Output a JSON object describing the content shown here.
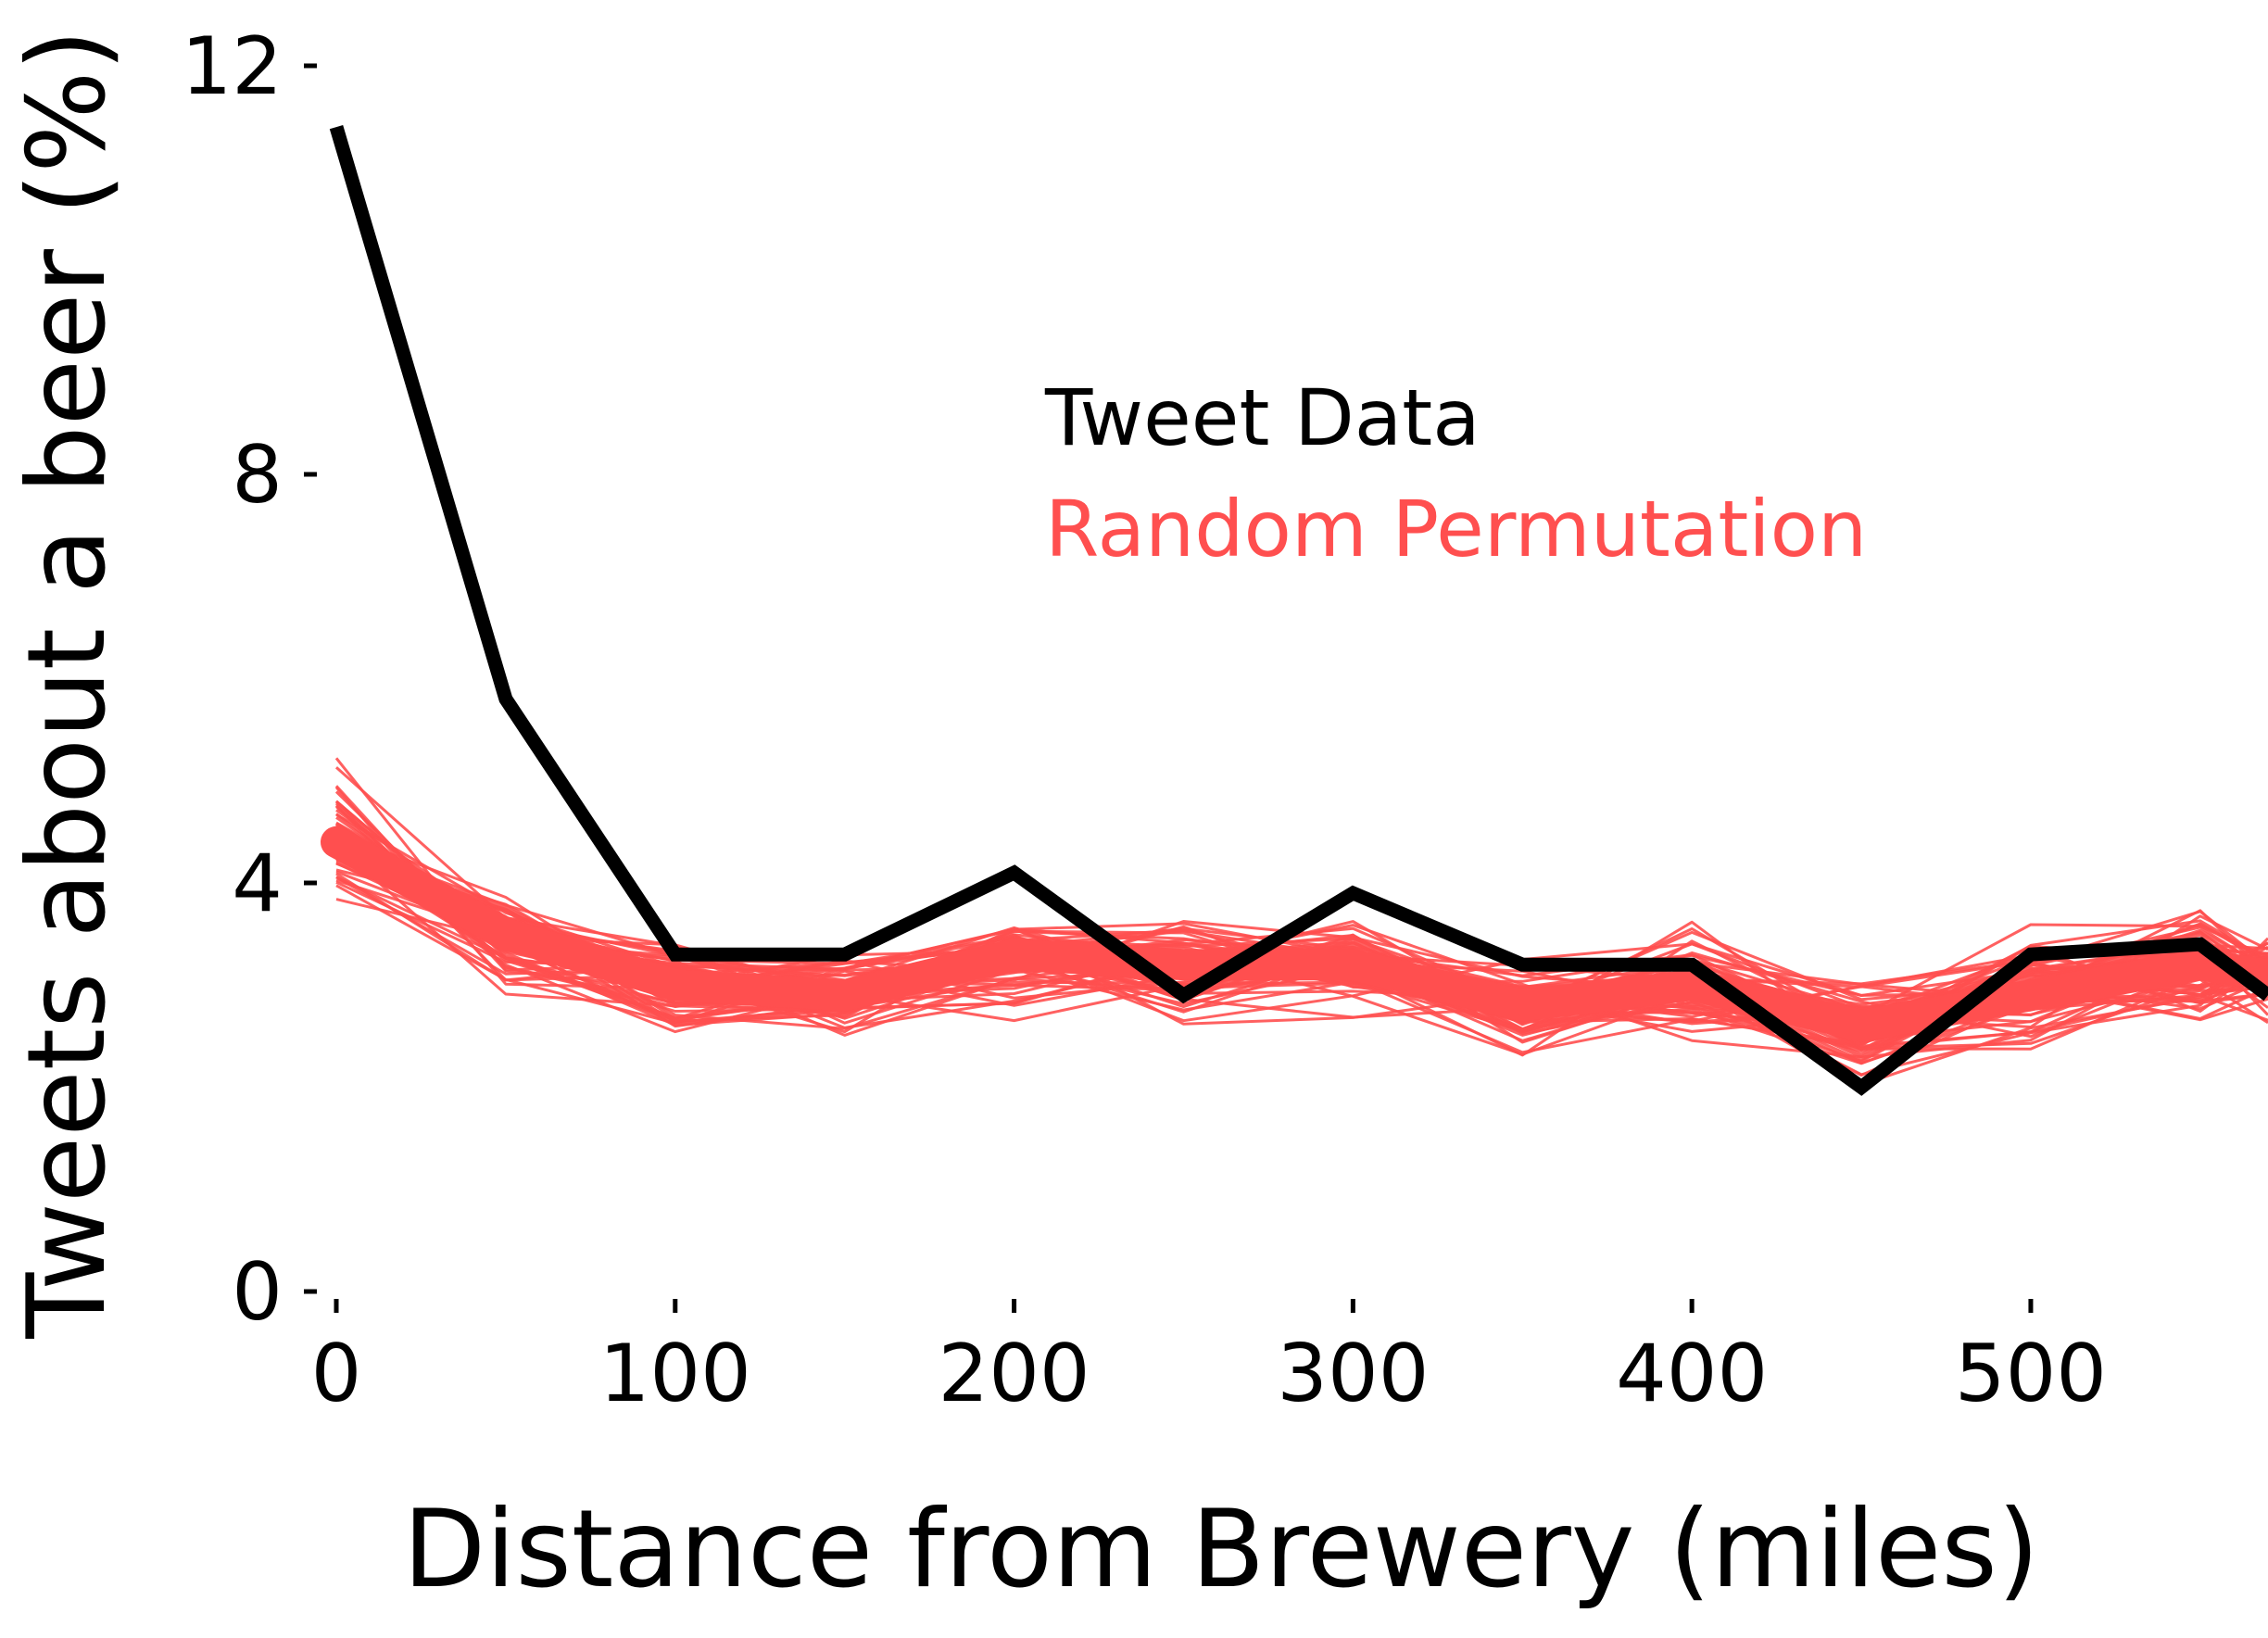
{
  "chart_data": {
    "type": "line",
    "title": "",
    "xlabel": "Distance from Brewery (miles)",
    "ylabel": "Tweets about a beer (%)",
    "xlim": [
      0,
      570
    ],
    "ylim": [
      0,
      12
    ],
    "x_ticks": [
      0,
      100,
      200,
      300,
      400,
      500
    ],
    "y_ticks": [
      0,
      4,
      8,
      12
    ],
    "x_tick_labels": [
      "0",
      "100",
      "200",
      "300",
      "400",
      "500"
    ],
    "y_tick_labels": [
      "0",
      "4",
      "8",
      "12"
    ],
    "grid": false,
    "legend": {
      "placement": "center-right",
      "entries": [
        "Tweet Data",
        "Random Permutation"
      ]
    },
    "colors": {
      "tweet_data": "#000000",
      "random_permutation": "#ff4f4f"
    },
    "x": [
      0,
      50,
      100,
      150,
      200,
      250,
      300,
      350,
      400,
      450,
      500,
      550,
      570
    ],
    "series": [
      {
        "name": "Tweet Data",
        "color": "#000000",
        "values": [
          11.4,
          5.8,
          3.3,
          3.3,
          4.1,
          2.9,
          3.9,
          3.2,
          3.2,
          2.0,
          3.3,
          3.4,
          2.9
        ]
      },
      {
        "name": "Random Permutation",
        "color": "#ff4f4f",
        "values": [
          4.4,
          3.5,
          3.0,
          2.9,
          3.3,
          3.2,
          3.2,
          2.8,
          3.0,
          2.6,
          2.9,
          3.2,
          3.1
        ]
      }
    ],
    "permutation_band": {
      "x": [
        0,
        50,
        100,
        150,
        200,
        250,
        300,
        350,
        400,
        450,
        500,
        550,
        570
      ],
      "low": [
        3.7,
        2.7,
        2.3,
        2.3,
        2.4,
        2.5,
        2.6,
        2.1,
        2.3,
        1.9,
        2.1,
        2.5,
        2.5
      ],
      "high": [
        5.3,
        4.1,
        3.5,
        3.4,
        3.7,
        3.8,
        3.7,
        3.5,
        3.8,
        3.1,
        3.7,
        4.0,
        3.7
      ]
    }
  }
}
